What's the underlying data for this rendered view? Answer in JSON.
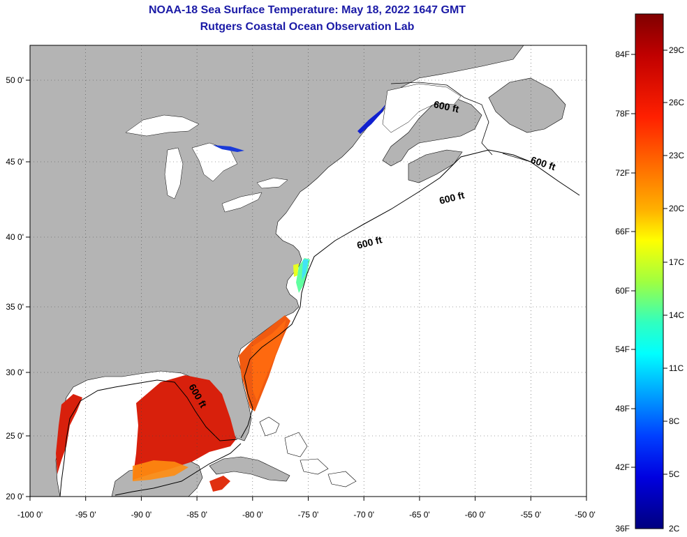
{
  "title": "NOAA-18 Sea Surface Temperature:  May 18, 2022 1647 GMT",
  "subtitle": "Rutgers Coastal Ocean Observation Lab",
  "map": {
    "lon_range": [
      -100,
      -50
    ],
    "lat_range": [
      20,
      52.5
    ],
    "lon_ticks": [
      "-100 0'",
      "-95 0'",
      "-90 0'",
      "-85 0'",
      "-80 0'",
      "-75 0'",
      "-70 0'",
      "-65 0'",
      "-60 0'",
      "-55 0'",
      "-50 0'"
    ],
    "lat_ticks": [
      "50 0'",
      "45 0'",
      "40 0'",
      "35 0'",
      "30 0'",
      "25 0'",
      "20 0'"
    ],
    "contour_labels": [
      "600 ft",
      "600 ft",
      "600 ft",
      "600 ft",
      "600 ft"
    ],
    "land_color": "#b4b4b4",
    "ocean_no_data_color": "#ffffff"
  },
  "colorbar": {
    "fahrenheit_labels": [
      "84F",
      "78F",
      "72F",
      "66F",
      "60F",
      "54F",
      "48F",
      "42F",
      "36F"
    ],
    "celsius_labels": [
      "29C",
      "26C",
      "23C",
      "20C",
      "17C",
      "14C",
      "11C",
      "8C",
      "5C",
      "2C"
    ],
    "colors_top_to_bottom": [
      "#7f0000",
      "#d00000",
      "#ff4000",
      "#ff8c00",
      "#ffd000",
      "#ffff00",
      "#a0ff40",
      "#40ffb0",
      "#00ffff",
      "#00a0ff",
      "#0040ff",
      "#0000d0",
      "#00007f"
    ]
  }
}
